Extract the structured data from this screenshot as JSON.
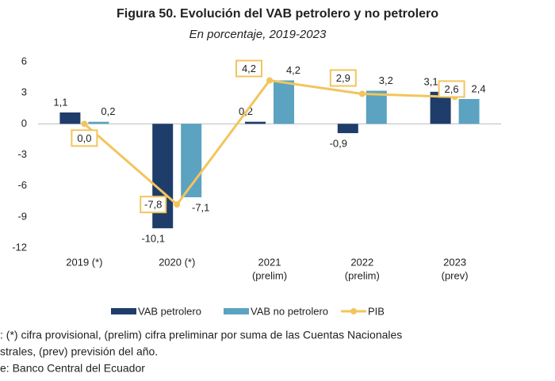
{
  "chart_data": {
    "type": "bar",
    "title": "Figura 50. Evolución del VAB petrolero y no petrolero",
    "subtitle": "En porcentaje, 2019-2023",
    "categories": [
      [
        "2019 (*)"
      ],
      [
        "2020 (*)"
      ],
      [
        "2021",
        "(prelim)"
      ],
      [
        "2022",
        "(prelim)"
      ],
      [
        "2023",
        "(prev)"
      ]
    ],
    "series": [
      {
        "name": "VAB petrolero",
        "type": "bar",
        "color": "#1f3d6b",
        "values": [
          1.1,
          -10.1,
          0.2,
          -0.9,
          3.1
        ],
        "value_labels": [
          "1,1",
          "-10,1",
          "0,2",
          "-0,9",
          "3,1"
        ]
      },
      {
        "name": "VAB no petrolero",
        "type": "bar",
        "color": "#5ba3c0",
        "values": [
          0.2,
          -7.1,
          4.2,
          3.2,
          2.4
        ],
        "value_labels": [
          "0,2",
          "-7,1",
          "4,2",
          "3,2",
          "2,4"
        ]
      },
      {
        "name": "PIB",
        "type": "line",
        "color": "#f2c55c",
        "values": [
          0.0,
          -7.8,
          4.2,
          2.9,
          2.6
        ],
        "value_labels": [
          "0,0",
          "-7,8",
          "4,2",
          "2,9",
          "2,6"
        ]
      }
    ],
    "ylim": [
      -12,
      6
    ],
    "yticks": [
      -12,
      -9,
      -6,
      -3,
      0,
      3,
      6
    ],
    "grid": false,
    "legend": "bottom",
    "notes": [
      ": (*) cifra provisional, (prelim) cifra preliminar por suma de las Cuentas Nacionales",
      "strales, (prev) previsión del año.",
      "e: Banco Central del Ecuador"
    ]
  }
}
